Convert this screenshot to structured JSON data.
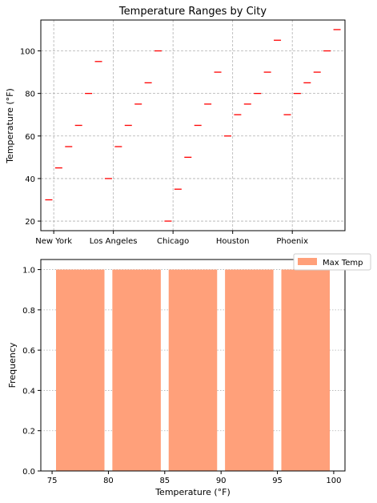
{
  "chart_data": [
    {
      "type": "scatter",
      "marker": "horizontal-line",
      "title": "Temperature Ranges by City",
      "xlabel": "",
      "ylabel": "Temperature (°F)",
      "ylim": [
        15.5,
        114.5
      ],
      "yticks": [
        20,
        40,
        60,
        80,
        100
      ],
      "xticklabels": [
        "New York",
        "Los Angeles",
        "Chicago",
        "Houston",
        "Phoenix"
      ],
      "grid": true,
      "color": "#ff0000",
      "points": [
        {
          "x": 0.0,
          "y": 30
        },
        {
          "x": 0.5,
          "y": 45
        },
        {
          "x": 1.0,
          "y": 55
        },
        {
          "x": 1.5,
          "y": 65
        },
        {
          "x": 2.0,
          "y": 80
        },
        {
          "x": 2.5,
          "y": 95
        },
        {
          "x": 3.0,
          "y": 40
        },
        {
          "x": 3.5,
          "y": 55
        },
        {
          "x": 4.0,
          "y": 65
        },
        {
          "x": 4.5,
          "y": 75
        },
        {
          "x": 5.0,
          "y": 85
        },
        {
          "x": 5.5,
          "y": 100
        },
        {
          "x": 6.0,
          "y": 20
        },
        {
          "x": 6.5,
          "y": 35
        },
        {
          "x": 7.0,
          "y": 50
        },
        {
          "x": 7.5,
          "y": 65
        },
        {
          "x": 8.0,
          "y": 75
        },
        {
          "x": 8.5,
          "y": 90
        },
        {
          "x": 9.0,
          "y": 60
        },
        {
          "x": 9.5,
          "y": 70
        },
        {
          "x": 10.0,
          "y": 75
        },
        {
          "x": 10.5,
          "y": 80
        },
        {
          "x": 11.0,
          "y": 90
        },
        {
          "x": 11.5,
          "y": 105
        },
        {
          "x": 12.0,
          "y": 70
        },
        {
          "x": 12.5,
          "y": 80
        },
        {
          "x": 13.0,
          "y": 85
        },
        {
          "x": 13.5,
          "y": 90
        },
        {
          "x": 14.0,
          "y": 100
        },
        {
          "x": 14.5,
          "y": 110
        }
      ],
      "xlim": [
        -0.4,
        14.9
      ],
      "xtick_positions": [
        0.25,
        3.25,
        6.25,
        9.25,
        12.25
      ]
    },
    {
      "type": "bar",
      "subtype": "histogram",
      "title": "",
      "xlabel": "Temperature (°F)",
      "ylabel": "Frequency",
      "xlim": [
        74.0,
        101.0
      ],
      "ylim": [
        0,
        1.05
      ],
      "xticks": [
        75,
        80,
        85,
        90,
        95,
        100
      ],
      "yticks": [
        0.0,
        0.2,
        0.4,
        0.6,
        0.8,
        1.0
      ],
      "ytick_labels": [
        "0.0",
        "0.2",
        "0.4",
        "0.6",
        "0.8",
        "1.0"
      ],
      "grid": "y",
      "legend": {
        "position": "top-right",
        "entries": [
          "Max Temp"
        ]
      },
      "color": "#ffa07a",
      "bins": [
        {
          "start": 75,
          "end": 80,
          "value": 1
        },
        {
          "start": 80,
          "end": 85,
          "value": 1
        },
        {
          "start": 85,
          "end": 90,
          "value": 1
        },
        {
          "start": 90,
          "end": 95,
          "value": 1
        },
        {
          "start": 95,
          "end": 100,
          "value": 1
        }
      ],
      "series": [
        {
          "name": "Max Temp"
        }
      ]
    }
  ]
}
